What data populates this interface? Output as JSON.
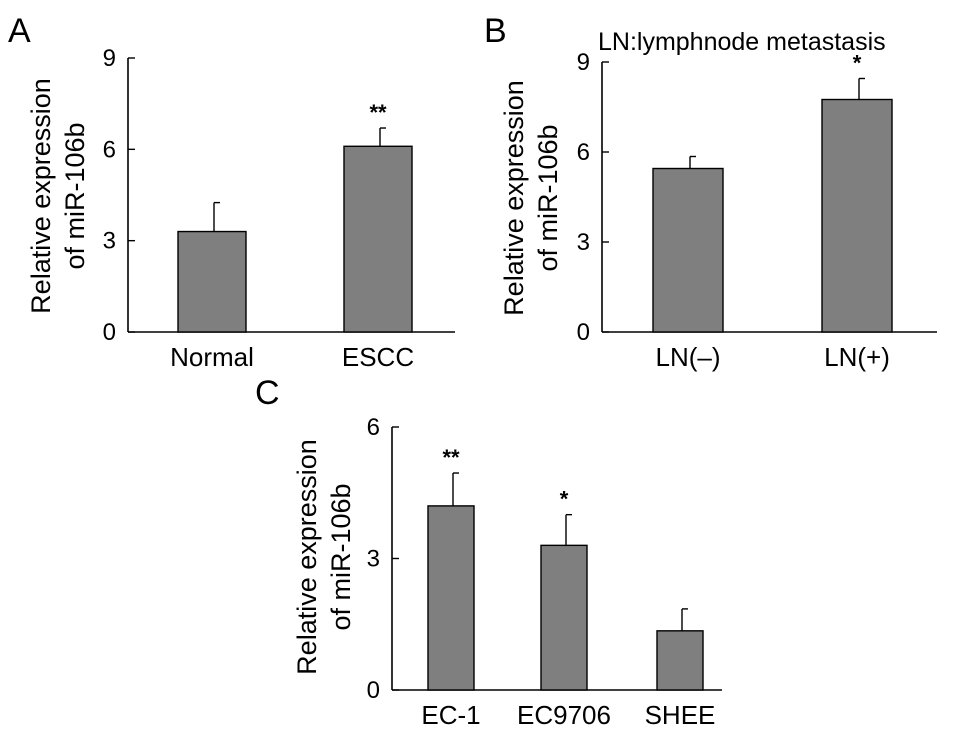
{
  "figure": {
    "background": "#ffffff",
    "bar_color": "#7f7f7f"
  },
  "chart_data": [
    {
      "type": "bar",
      "panel": "A",
      "ylabel_lines": [
        "Relative expression",
        "of miR-106b"
      ],
      "ylim": [
        0,
        9
      ],
      "yticks": [
        "0",
        "3",
        "6",
        "9"
      ],
      "categories": [
        "Normal",
        "ESCC"
      ],
      "values": [
        3.3,
        6.1
      ],
      "errors": [
        0.95,
        0.6
      ],
      "significance": [
        "",
        "**"
      ],
      "grid": false
    },
    {
      "type": "bar",
      "panel": "B",
      "annotation": "LN:lymphnode metastasis",
      "ylabel_lines": [
        "Relative expression",
        "of miR-106b"
      ],
      "ylim": [
        0,
        9
      ],
      "yticks": [
        "0",
        "3",
        "6",
        "9"
      ],
      "categories": [
        "LN(–)",
        "LN(+)"
      ],
      "values": [
        5.45,
        7.75
      ],
      "errors": [
        0.4,
        0.7
      ],
      "significance": [
        "",
        "*"
      ],
      "grid": false
    },
    {
      "type": "bar",
      "panel": "C",
      "ylabel_lines": [
        "Relative expression",
        "of miR-106b"
      ],
      "ylim": [
        0,
        6
      ],
      "yticks": [
        "0",
        "3",
        "6"
      ],
      "categories": [
        "EC-1",
        "EC9706",
        "SHEE"
      ],
      "values": [
        4.2,
        3.3,
        1.35
      ],
      "errors": [
        0.75,
        0.7,
        0.5
      ],
      "significance": [
        "**",
        "*",
        ""
      ],
      "grid": false
    }
  ]
}
